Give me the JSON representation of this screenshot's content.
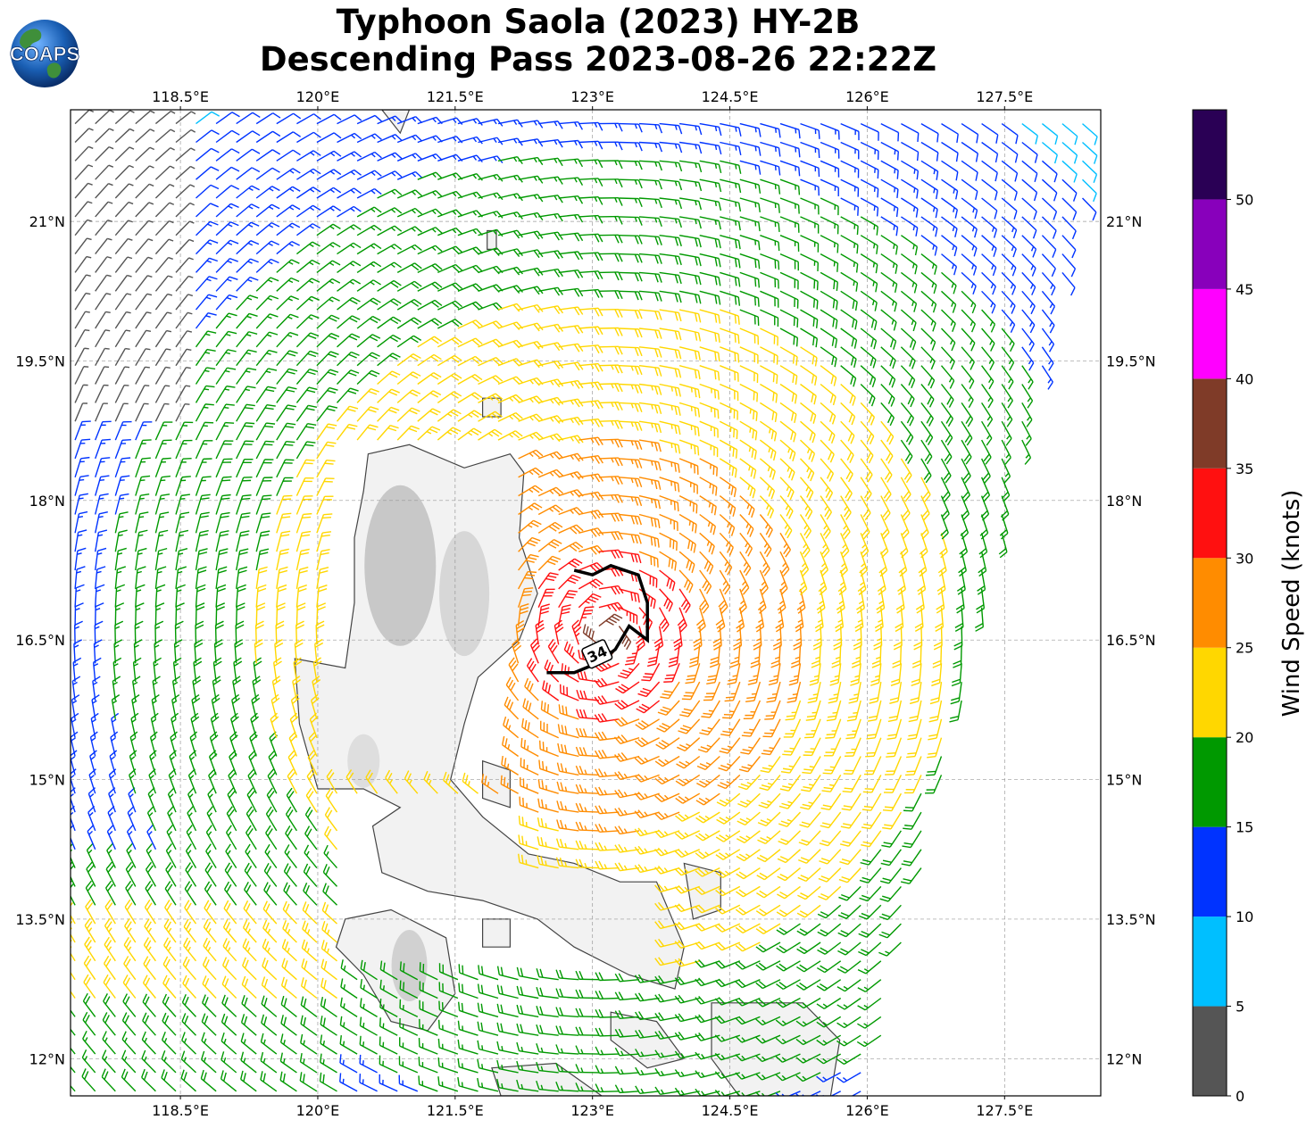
{
  "header": {
    "title_line1": "Typhoon Saola (2023) HY-2B",
    "title_line2": "Descending Pass 2023-08-26 22:22Z",
    "logo_text": "COAPS"
  },
  "map": {
    "lon_ticks": [
      "118.5°E",
      "120°E",
      "121.5°E",
      "123°E",
      "124.5°E",
      "126°E",
      "127.5°E"
    ],
    "lat_ticks": [
      "21°N",
      "19.5°N",
      "18°N",
      "16.5°N",
      "15°N",
      "13.5°N",
      "12°N"
    ],
    "lon_range": [
      117.3,
      128.55
    ],
    "lat_range": [
      11.6,
      22.2
    ],
    "storm_label": "34",
    "storm_center": [
      123.15,
      16.55
    ],
    "track": [
      [
        122.8,
        17.25
      ],
      [
        123.0,
        17.2
      ],
      [
        123.2,
        17.3
      ],
      [
        123.5,
        17.2
      ],
      [
        123.6,
        16.9
      ],
      [
        123.6,
        16.5
      ],
      [
        123.4,
        16.65
      ],
      [
        123.25,
        16.4
      ],
      [
        123.05,
        16.25
      ],
      [
        122.8,
        16.15
      ],
      [
        122.5,
        16.15
      ]
    ]
  },
  "colorbar": {
    "label": "Wind Speed (knots)",
    "ticks": [
      "0",
      "5",
      "10",
      "15",
      "20",
      "25",
      "30",
      "35",
      "40",
      "45",
      "50"
    ],
    "bins": [
      {
        "min": 0,
        "max": 5,
        "color": "#555555"
      },
      {
        "min": 5,
        "max": 10,
        "color": "#00bfff"
      },
      {
        "min": 10,
        "max": 15,
        "color": "#0033ff"
      },
      {
        "min": 15,
        "max": 20,
        "color": "#009900"
      },
      {
        "min": 20,
        "max": 25,
        "color": "#ffd700"
      },
      {
        "min": 25,
        "max": 30,
        "color": "#ff8c00"
      },
      {
        "min": 30,
        "max": 35,
        "color": "#ff1010"
      },
      {
        "min": 35,
        "max": 40,
        "color": "#7f3b28"
      },
      {
        "min": 40,
        "max": 45,
        "color": "#ff00ff"
      },
      {
        "min": 45,
        "max": 50,
        "color": "#8800bb"
      },
      {
        "min": 50,
        "max": 55,
        "color": "#2a0055"
      }
    ]
  }
}
